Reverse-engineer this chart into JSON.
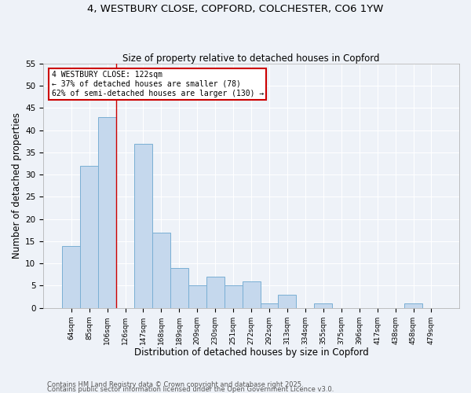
{
  "title1": "4, WESTBURY CLOSE, COPFORD, COLCHESTER, CO6 1YW",
  "title2": "Size of property relative to detached houses in Copford",
  "xlabel": "Distribution of detached houses by size in Copford",
  "ylabel": "Number of detached properties",
  "categories": [
    "64sqm",
    "85sqm",
    "106sqm",
    "126sqm",
    "147sqm",
    "168sqm",
    "189sqm",
    "209sqm",
    "230sqm",
    "251sqm",
    "272sqm",
    "292sqm",
    "313sqm",
    "334sqm",
    "355sqm",
    "375sqm",
    "396sqm",
    "417sqm",
    "438sqm",
    "458sqm",
    "479sqm"
  ],
  "values": [
    14,
    32,
    43,
    0,
    37,
    17,
    9,
    5,
    7,
    5,
    6,
    1,
    3,
    0,
    1,
    0,
    0,
    0,
    0,
    1,
    0
  ],
  "bar_color": "#c5d8ed",
  "bar_edge_color": "#7aafd4",
  "red_line_index": 3,
  "annotation_text": "4 WESTBURY CLOSE: 122sqm\n← 37% of detached houses are smaller (78)\n62% of semi-detached houses are larger (130) →",
  "annotation_box_facecolor": "white",
  "annotation_box_edgecolor": "#cc0000",
  "footer1": "Contains HM Land Registry data © Crown copyright and database right 2025.",
  "footer2": "Contains public sector information licensed under the Open Government Licence v3.0.",
  "bg_color": "#eef2f8",
  "ylim": [
    0,
    55
  ],
  "yticks": [
    0,
    5,
    10,
    15,
    20,
    25,
    30,
    35,
    40,
    45,
    50,
    55
  ],
  "grid_color": "#ffffff",
  "title_fontsize": 9.5,
  "subtitle_fontsize": 8.5
}
